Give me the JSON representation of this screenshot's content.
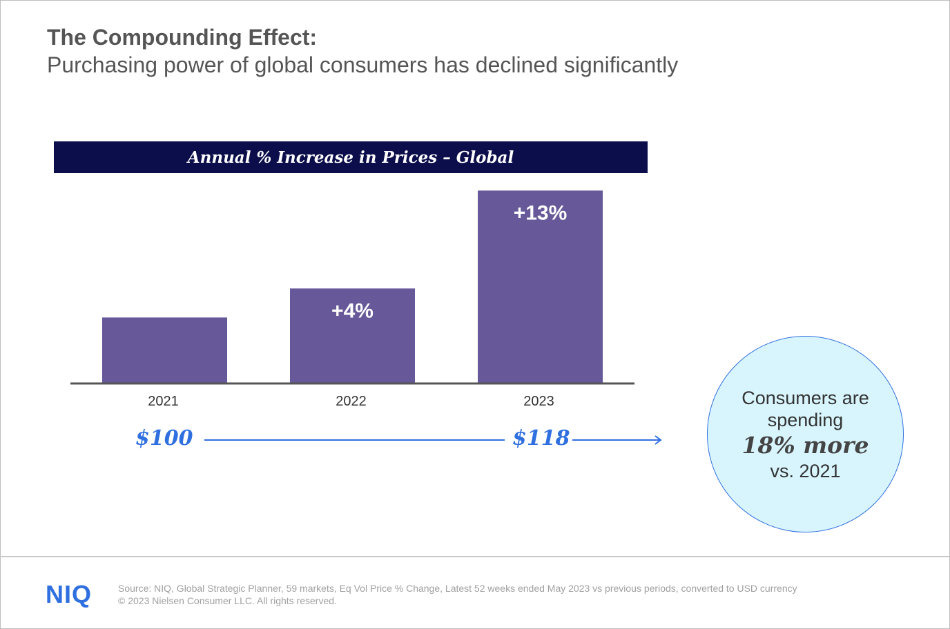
{
  "header": {
    "title": "The Compounding Effect:",
    "subtitle": "Purchasing power of global consumers has declined significantly"
  },
  "chart_data": {
    "type": "bar",
    "title": "Annual % Increase in Prices – Global",
    "categories": [
      "2021",
      "2022",
      "2023"
    ],
    "values": [
      100,
      104,
      117.5
    ],
    "data_labels": [
      "",
      "+4%",
      "+13%"
    ],
    "ylim": [
      91,
      120
    ],
    "grid": false,
    "bar_color": "#67589a"
  },
  "price_timeline": {
    "start": "$100",
    "end": "$118",
    "color": "#2f6fe0"
  },
  "callout": {
    "line1": "Consumers are",
    "line2": "spending",
    "highlight": "18% more",
    "line3": "vs. 2021"
  },
  "footer": {
    "logo": "NIQ",
    "source": "Source: NIQ, Global Strategic Planner, 59 markets, Eq Vol Price % Change, Latest 52 weeks ended May 2023 vs previous periods, converted to USD currency",
    "copyright": "© 2023 Nielsen Consumer LLC. All rights reserved."
  }
}
